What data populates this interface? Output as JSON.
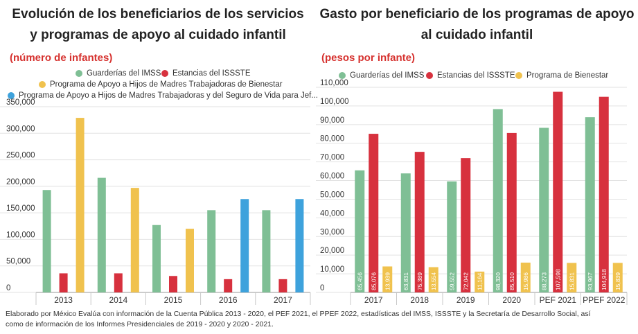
{
  "left": {
    "title_line1": "Evolución de los beneficiarios de los servicios",
    "title_line2": "y programas de apoyo al cuidado infantil",
    "subtitle": "(número de infantes)",
    "legend": [
      {
        "label": "Guarderías del IMSS",
        "color": "#7fbf95"
      },
      {
        "label": "Estancias del ISSSTE",
        "color": "#d7313e"
      },
      {
        "label": "Programa de Apoyo a Hijos de Madres Trabajadoras de Bienestar",
        "color": "#f0c24e"
      },
      {
        "label": "Programa de Apoyo a Hijos de Madres Trabajadoras y del Seguro de Vida para Jef...",
        "color": "#3ea2dc"
      }
    ]
  },
  "right": {
    "title_line1": "Gasto por beneficiario de los programas de apoyo",
    "title_line2": "al cuidado infantil",
    "subtitle": "(pesos por infante)",
    "legend": [
      {
        "label": "Guarderías del IMSS",
        "color": "#7fbf95"
      },
      {
        "label": "Estancias del ISSSTE",
        "color": "#d7313e"
      },
      {
        "label": "Programa de Bienestar",
        "color": "#f0c24e"
      }
    ]
  },
  "footer_line1": "Elaborado por México Evalúa con información de la Cuenta Pública 2013 - 2020, el PEF 2021, el PPEF 2022, estadísticas del IMSS, ISSSTE y la Secretaría de Desarrollo Social, así",
  "footer_line2": "como de información de los Informes Presidenciales de 2019 - 2020 y 2020 - 2021.",
  "chart_data": [
    {
      "type": "bar",
      "title": "Evolución de los beneficiarios de los servicios y programas de apoyo al cuidado infantil",
      "subtitle": "(número de infantes)",
      "categories": [
        "2013",
        "2014",
        "2015",
        "2016",
        "2017"
      ],
      "ylim": [
        0,
        350000
      ],
      "yticks": [
        0,
        50000,
        100000,
        150000,
        200000,
        250000,
        300000,
        350000
      ],
      "ytick_labels": [
        "0",
        "50,000",
        "100,000",
        "150,000",
        "200,000",
        "250,000",
        "300,000",
        "350,000"
      ],
      "grid": true,
      "legend_position": "top",
      "series": [
        {
          "name": "Guarderías del IMSS",
          "color": "#7fbf95",
          "values": [
            193000,
            216000,
            127000,
            155000,
            155000
          ]
        },
        {
          "name": "Estancias del ISSSTE",
          "color": "#d7313e",
          "values": [
            36000,
            36000,
            31000,
            25000,
            25000
          ]
        },
        {
          "name": "Programa de Apoyo a Hijos de Madres Trabajadoras de Bienestar",
          "color": "#f0c24e",
          "values": [
            329000,
            197000,
            120000,
            null,
            null
          ]
        },
        {
          "name": "Programa de Apoyo a Hijos de Madres Trabajadoras y del Seguro de Vida para Jef...",
          "color": "#3ea2dc",
          "values": [
            null,
            null,
            null,
            176000,
            176000
          ]
        }
      ]
    },
    {
      "type": "bar",
      "title": "Gasto por beneficiario de los programas de apoyo al cuidado infantil",
      "subtitle": "(pesos por infante)",
      "categories": [
        "2017",
        "2018",
        "2019",
        "2020",
        "PEF 2021",
        "PPEF 2022"
      ],
      "ylim": [
        0,
        110000
      ],
      "yticks": [
        0,
        10000,
        20000,
        30000,
        40000,
        50000,
        60000,
        70000,
        80000,
        90000,
        100000,
        110000
      ],
      "ytick_labels": [
        "0",
        "10,000",
        "20,000",
        "30,000",
        "40,000",
        "50,000",
        "60,000",
        "70,000",
        "80,000",
        "90,000",
        "100,000",
        "110,000"
      ],
      "grid": true,
      "legend_position": "top",
      "series": [
        {
          "name": "Guarderías del IMSS",
          "color": "#7fbf95",
          "values": [
            65456,
            63831,
            59552,
            98320,
            88273,
            93967
          ],
          "labels": [
            "65,456",
            "63,831",
            "59,552",
            "98,320",
            "88,273",
            "93,967"
          ]
        },
        {
          "name": "Estancias del ISSSTE",
          "color": "#d7313e",
          "values": [
            85076,
            75389,
            72042,
            85510,
            107598,
            104918
          ],
          "labels": [
            "85,076",
            "75,389",
            "72,042",
            "85,510",
            "107,598",
            "104,918"
          ]
        },
        {
          "name": "Programa de Bienestar",
          "color": "#f0c24e",
          "values": [
            13939,
            13554,
            11164,
            15986,
            15831,
            15839
          ],
          "labels": [
            "13,939",
            "13,554",
            "11,164",
            "15,986",
            "15,831",
            "15,839"
          ]
        }
      ]
    }
  ]
}
